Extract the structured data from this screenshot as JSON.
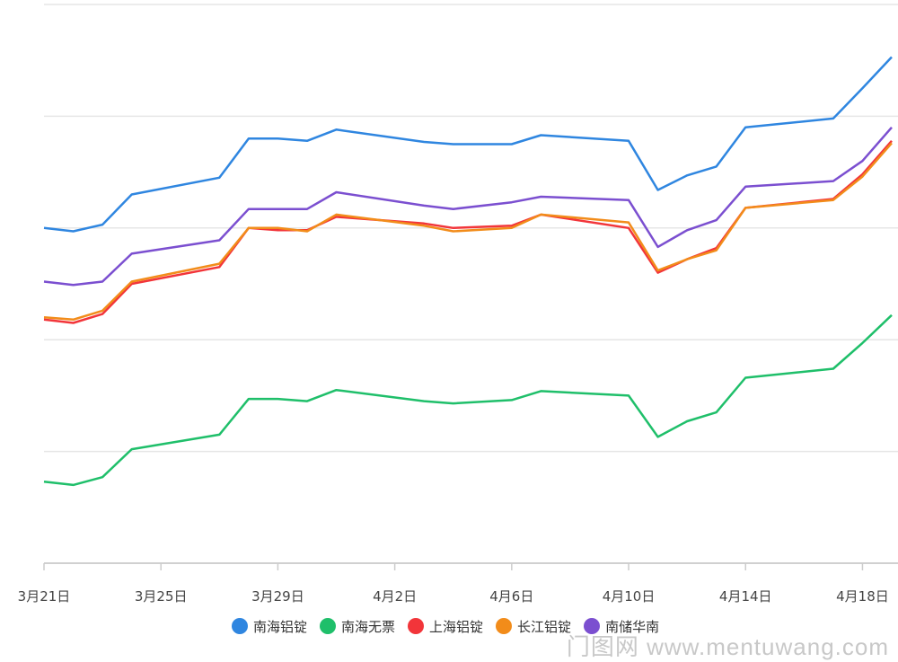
{
  "chart_data": {
    "type": "line",
    "x": [
      "3月21日",
      "3月22日",
      "3月23日",
      "3月24日",
      "3月27日",
      "3月28日",
      "3月29日",
      "3月30日",
      "3月31日",
      "4月3日",
      "4月4日",
      "4月6日",
      "4月7日",
      "4月10日",
      "4月11日",
      "4月12日",
      "4月13日",
      "4月14日",
      "4月17日",
      "4月18日",
      "4月19日"
    ],
    "xticks": [
      "3月21日",
      "3月25日",
      "3月29日",
      "4月2日",
      "4月6日",
      "4月10日",
      "4月14日",
      "4月18日"
    ],
    "series": [
      {
        "name": "南海铝锭",
        "color": "#2f86e0",
        "values": [
          3.0,
          2.97,
          3.03,
          3.3,
          3.45,
          3.8,
          3.8,
          3.78,
          3.88,
          3.77,
          3.75,
          3.75,
          3.83,
          3.78,
          3.34,
          3.47,
          3.55,
          3.9,
          3.98,
          4.25,
          4.53
        ]
      },
      {
        "name": "南海无票",
        "color": "#1fbf6a",
        "values": [
          0.73,
          0.7,
          0.77,
          1.02,
          1.15,
          1.47,
          1.47,
          1.45,
          1.55,
          1.45,
          1.43,
          1.46,
          1.54,
          1.5,
          1.13,
          1.27,
          1.35,
          1.66,
          1.74,
          1.97,
          2.22
        ]
      },
      {
        "name": "上海铝锭",
        "color": "#f2353a",
        "values": [
          2.18,
          2.15,
          2.23,
          2.5,
          2.65,
          3.0,
          2.98,
          2.98,
          3.1,
          3.04,
          3.0,
          3.02,
          3.12,
          3.0,
          2.6,
          2.72,
          2.82,
          3.18,
          3.26,
          3.48,
          3.78
        ]
      },
      {
        "name": "长江铝锭",
        "color": "#f28c1a",
        "values": [
          2.2,
          2.18,
          2.26,
          2.52,
          2.68,
          3.0,
          3.0,
          2.97,
          3.12,
          3.02,
          2.97,
          3.0,
          3.12,
          3.05,
          2.62,
          2.72,
          2.8,
          3.18,
          3.25,
          3.46,
          3.76
        ]
      },
      {
        "name": "南储华南",
        "color": "#7b4fd0",
        "values": [
          2.52,
          2.49,
          2.52,
          2.77,
          2.89,
          3.17,
          3.17,
          3.17,
          3.32,
          3.2,
          3.17,
          3.23,
          3.28,
          3.25,
          2.83,
          2.98,
          3.07,
          3.37,
          3.42,
          3.6,
          3.9
        ]
      }
    ],
    "ylim": [
      0,
      5
    ],
    "grid": true,
    "legend": "bottom-center"
  },
  "watermark": "门图网 www.mentuwang.com"
}
